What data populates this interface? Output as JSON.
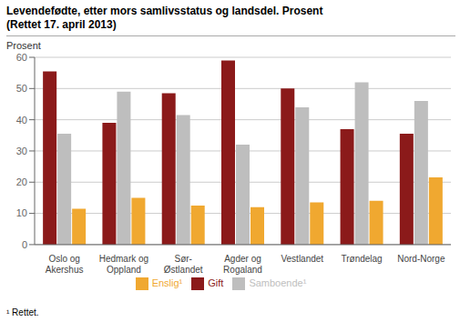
{
  "chart_data": {
    "type": "bar",
    "title": "Levendefødte, etter mors samlivsstatus og landsdel. Prosent",
    "subtitle": "(Rettet 17. april 2013)",
    "ylabel": "Prosent",
    "footnote": "¹ Rettet.",
    "categories": [
      "Oslo og\nAkershus",
      "Hedmark og\nOppland",
      "Sør-\nØstlandet",
      "Agder og\nRogaland",
      "Vestlandet",
      "Trøndelag",
      "Nord-Norge"
    ],
    "series": [
      {
        "name": "Gift",
        "color": "#8B1A1A",
        "values": [
          55.5,
          39.0,
          48.5,
          59.0,
          50.0,
          37.0,
          35.5
        ]
      },
      {
        "name": "Samboende¹",
        "color": "#BEBEBE",
        "values": [
          35.5,
          49.0,
          41.5,
          32.0,
          44.0,
          52.0,
          46.0
        ]
      },
      {
        "name": "Enslig¹",
        "color": "#F0A830",
        "values": [
          11.5,
          15.0,
          12.5,
          12.0,
          13.5,
          14.0,
          21.5
        ]
      }
    ],
    "ylim": [
      0,
      60
    ],
    "yticks": [
      0,
      10,
      20,
      30,
      40,
      50,
      60
    ],
    "grid": true,
    "legend": "bottom"
  }
}
